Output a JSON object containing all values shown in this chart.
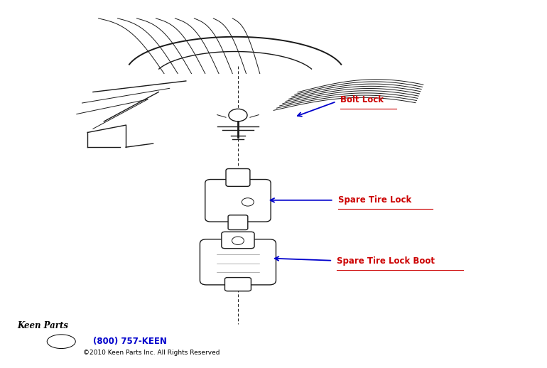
{
  "background_color": "#ffffff",
  "labels": {
    "bolt_lock": "Bolt Lock",
    "spare_tire_lock": "Spare Tire Lock",
    "spare_tire_lock_boot": "Spare Tire Lock Boot"
  },
  "label_color": "#cc0000",
  "arrow_color": "#0000cc",
  "phone_text": "(800) 757-KEEN",
  "copyright_text": "©2010 Keen Parts Inc. All Rights Reserved",
  "phone_color": "#0000cc",
  "copyright_color": "#000000"
}
